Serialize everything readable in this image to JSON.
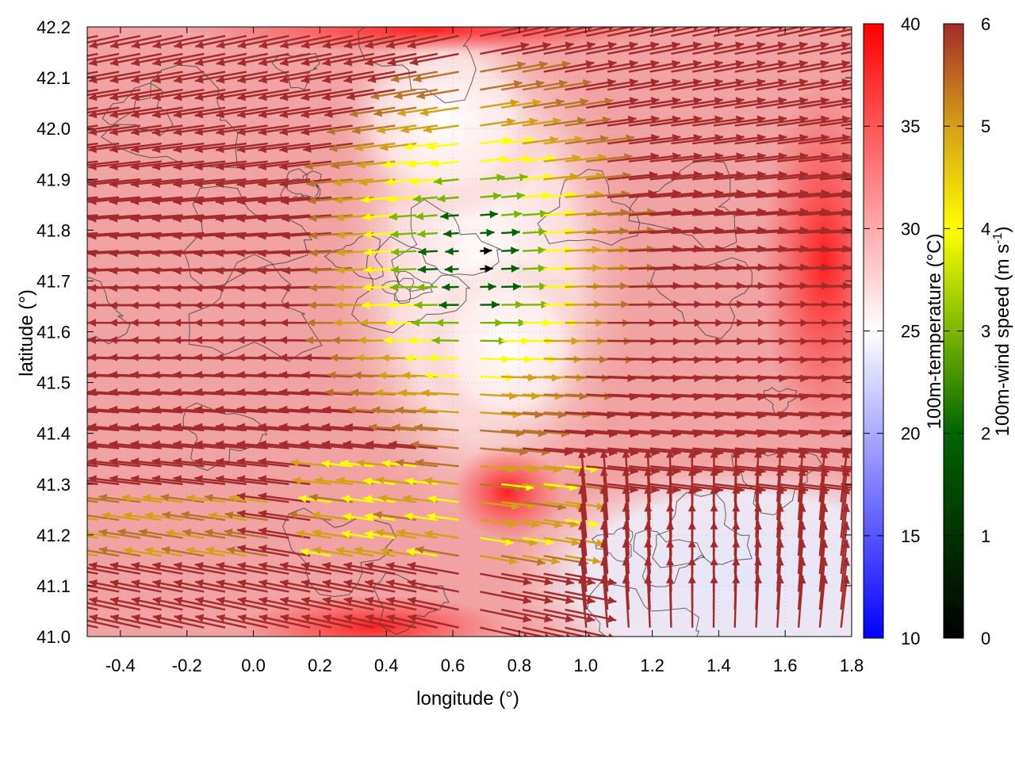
{
  "chart_data": {
    "type": "heatmap",
    "subtype": "vector-field-over-temperature-map",
    "title": "",
    "xlabel": "longitude (°)",
    "ylabel": "latitude (°)",
    "xlim": [
      -0.5,
      1.8
    ],
    "ylim": [
      41.0,
      42.2
    ],
    "x_ticks": [
      "-0.4",
      "-0.2",
      "0.0",
      "0.2",
      "0.4",
      "0.6",
      "0.8",
      "1.0",
      "1.2",
      "1.4",
      "1.6",
      "1.8"
    ],
    "x_tick_values": [
      -0.4,
      -0.2,
      0.0,
      0.2,
      0.4,
      0.6,
      0.8,
      1.0,
      1.2,
      1.4,
      1.6,
      1.8
    ],
    "y_ticks": [
      "41.0",
      "41.1",
      "41.2",
      "41.3",
      "41.4",
      "41.5",
      "41.6",
      "41.7",
      "41.8",
      "41.9",
      "42.0",
      "42.1",
      "42.2"
    ],
    "y_tick_values": [
      41.0,
      41.1,
      41.2,
      41.3,
      41.4,
      41.5,
      41.6,
      41.7,
      41.8,
      41.9,
      42.0,
      42.1,
      42.2
    ],
    "grid": true,
    "temperature_colorbar": {
      "label": "100m-temperature (°C)",
      "range": [
        10,
        40
      ],
      "ticks": [
        "10",
        "15",
        "20",
        "25",
        "30",
        "35",
        "40"
      ],
      "tick_values": [
        10,
        15,
        20,
        25,
        30,
        35,
        40
      ],
      "colors": [
        "#0000ff",
        "#ffffff",
        "#ff0000"
      ]
    },
    "wind_colorbar": {
      "label_main": "100m-wind speed (m s",
      "label_sup": "-1",
      "label_end": ")",
      "range": [
        0,
        6
      ],
      "ticks": [
        "0",
        "1",
        "2",
        "3",
        "4",
        "5",
        "6"
      ],
      "tick_values": [
        0,
        1,
        2,
        3,
        4,
        5,
        6
      ],
      "colors": [
        "#000000",
        "#006400",
        "#7ab800",
        "#ffff00",
        "#d4a017",
        "#b8742a",
        "#a52a2a"
      ]
    },
    "temperature_field_description": "mostly 30-38 °C, cooler 25-28 °C near the center-north (0.6-0.8° E, 41.6-42.1° N) and bottom-right corner (1.0-1.8° E, 41.0-41.3° N)",
    "wind_field_description": "westward flow (~6 m/s) west of 0.6° E, eastward flow east of 0.7° E, weak winds (1-4 m/s) in the central divergence zone, northward flow in the south-east corner"
  }
}
